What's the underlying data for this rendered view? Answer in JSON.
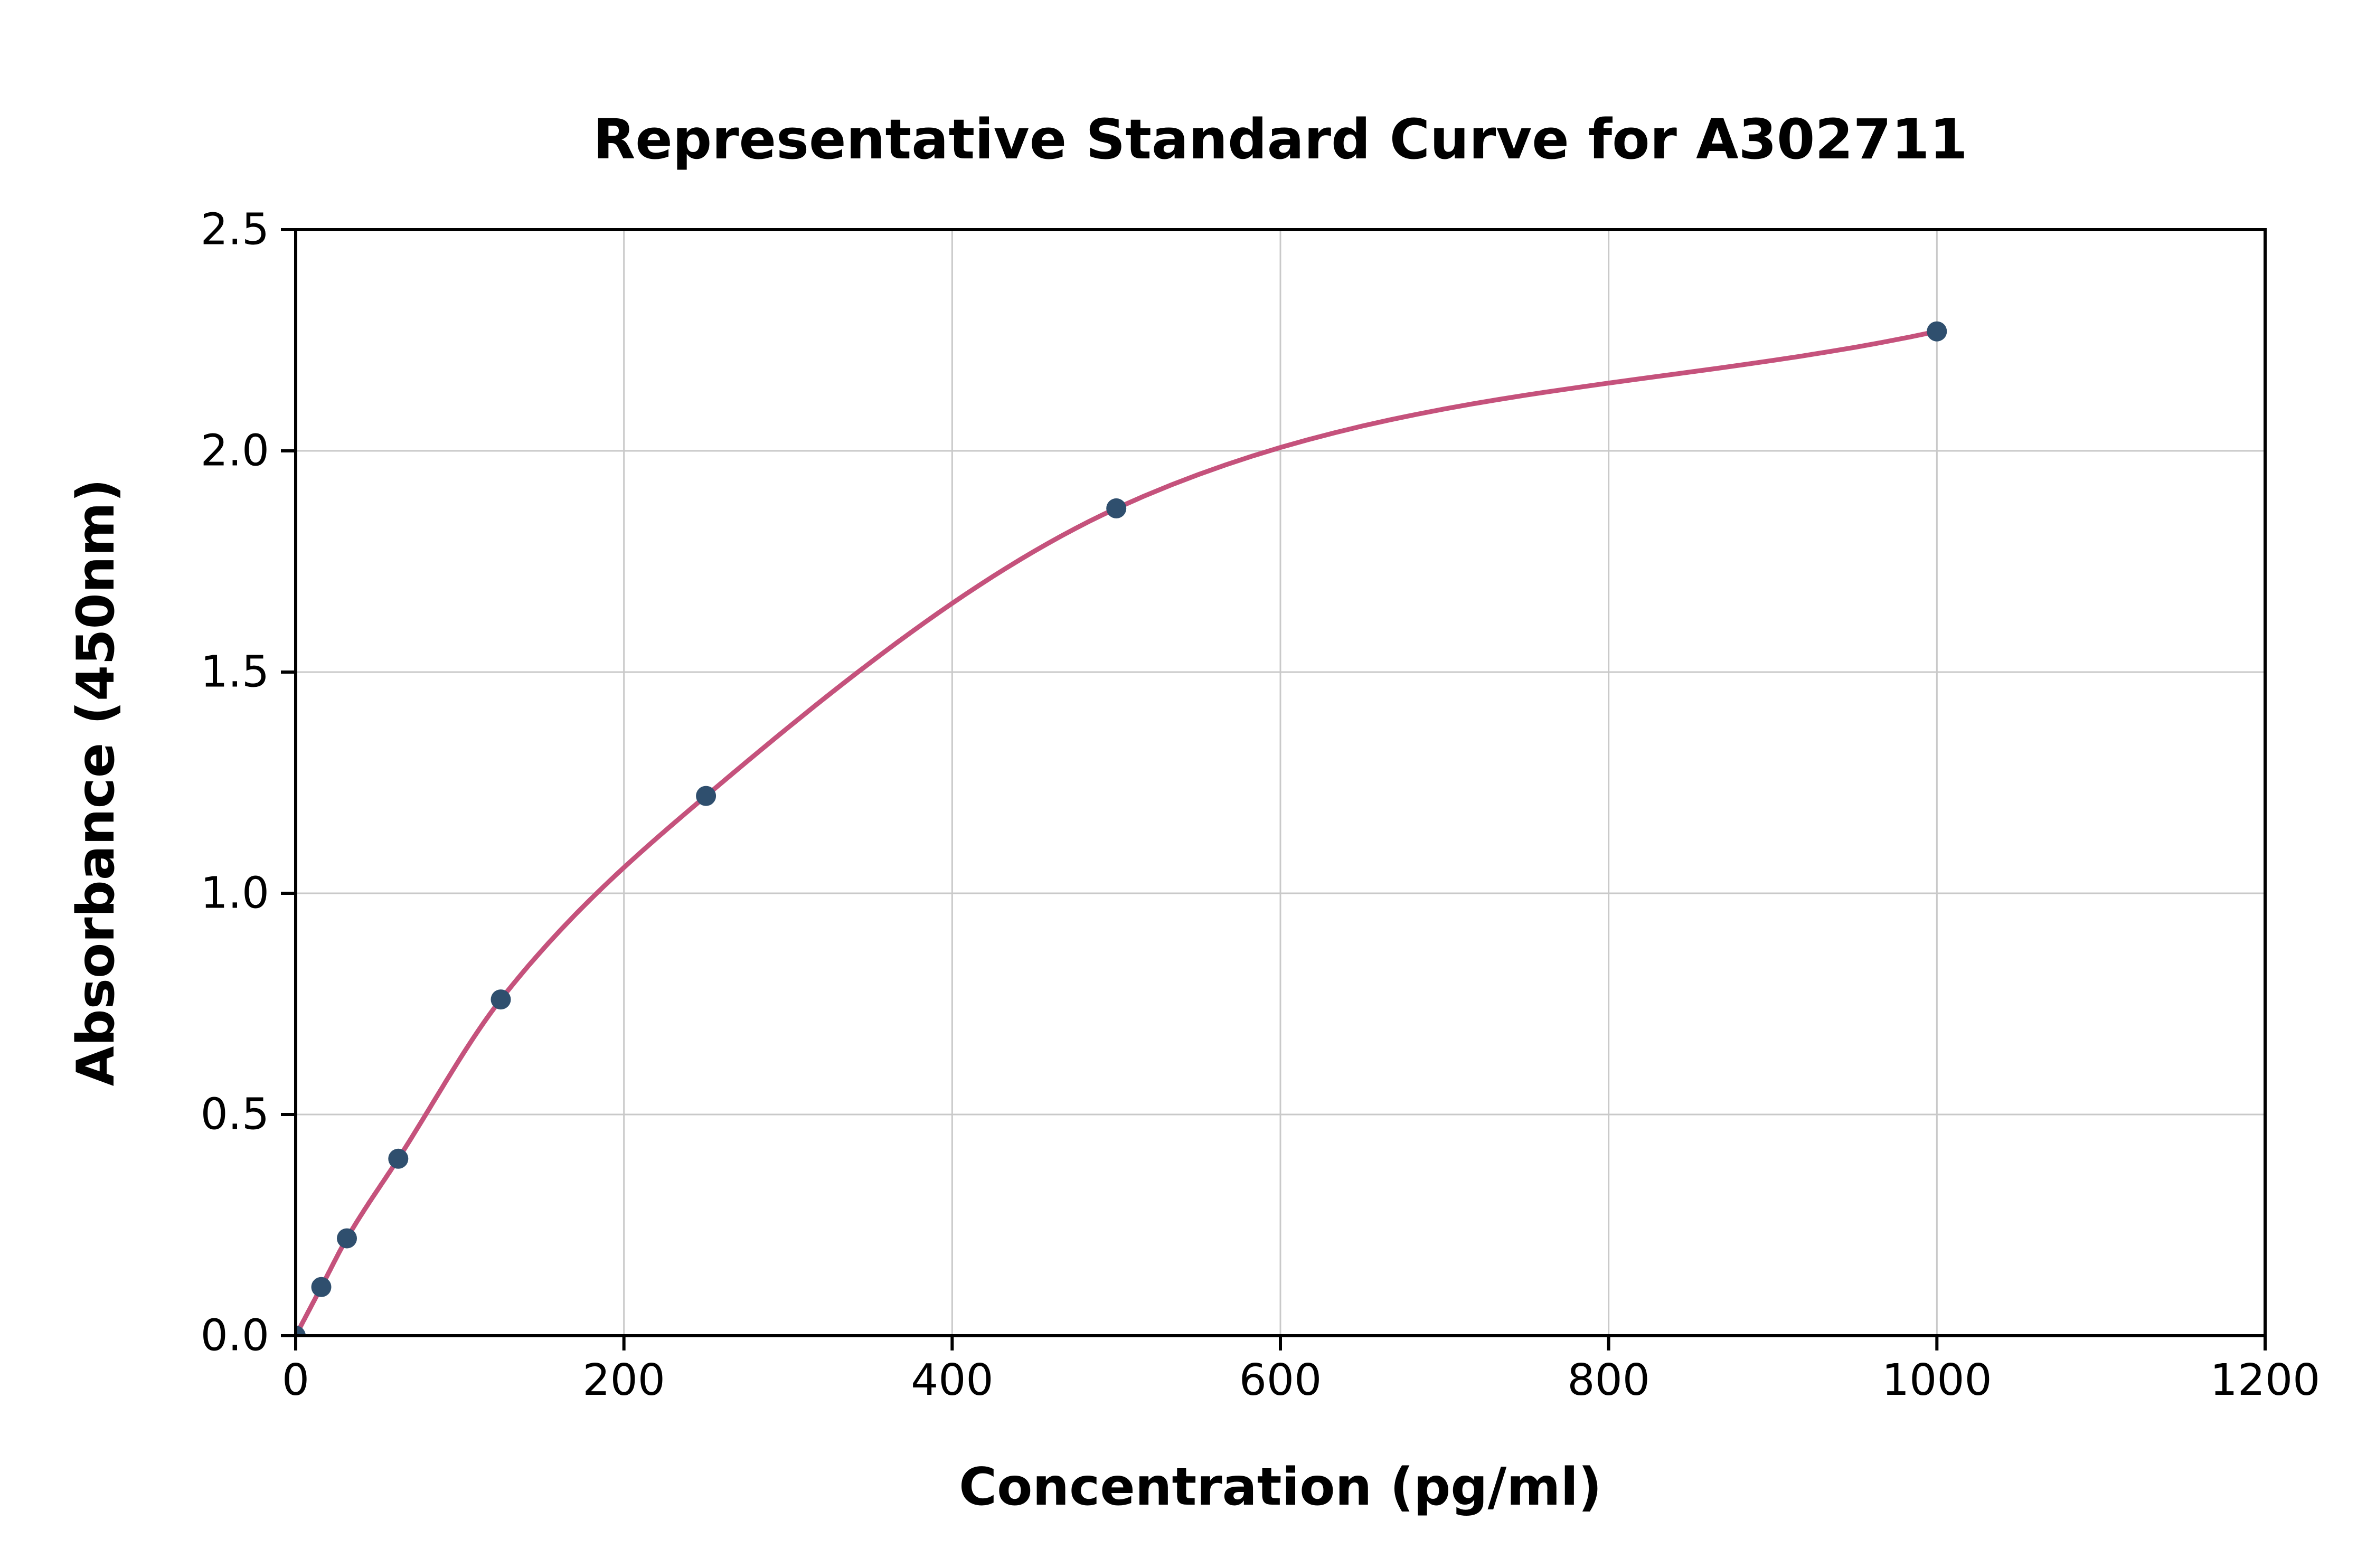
{
  "figure": {
    "background_color": "#ffffff"
  },
  "chart_data": {
    "type": "scatter",
    "title": "Representative Standard Curve for A302711",
    "xlabel": "Concentration (pg/ml)",
    "ylabel": "Absorbance (450nm)",
    "xlim": [
      0,
      1200
    ],
    "ylim": [
      0,
      2.5
    ],
    "x_ticks": [
      0,
      200,
      400,
      600,
      800,
      1000,
      1200
    ],
    "x_tick_labels": [
      "0",
      "200",
      "400",
      "600",
      "800",
      "1000",
      "1200"
    ],
    "y_ticks": [
      0,
      0.5,
      1.0,
      1.5,
      2.0,
      2.5
    ],
    "y_tick_labels": [
      "0.0",
      "0.5",
      "1.0",
      "1.5",
      "2.0",
      "2.5"
    ],
    "grid": true,
    "legend": "none",
    "series": [
      {
        "name": "standard-points",
        "type": "scatter",
        "x": [
          0,
          15.6,
          31.2,
          62.5,
          125,
          250,
          500,
          1000
        ],
        "y": [
          0.0,
          0.11,
          0.22,
          0.4,
          0.76,
          1.22,
          1.87,
          2.27
        ],
        "marker_color": "#2f4f6e",
        "marker_radius_px": 19
      },
      {
        "name": "fitted-curve",
        "type": "smooth-line",
        "through": "standard-points",
        "color": "#c5527c",
        "stroke_width_px": 9
      }
    ],
    "colors": {
      "grid": "#c9c9c9",
      "axis": "#000000",
      "text": "#000000"
    }
  }
}
